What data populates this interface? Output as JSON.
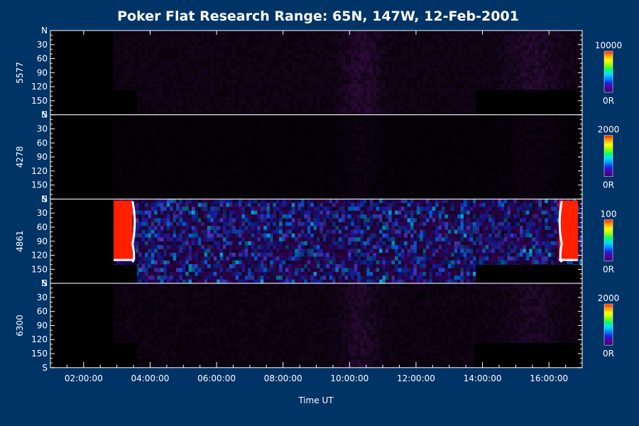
{
  "title": "Poker Flat Research Range: 65N, 147W, 12-Feb-2001",
  "colors": {
    "background": "#003366",
    "axis": "#ffffff",
    "no_data": "#000000"
  },
  "chart_data": {
    "type": "heatmap",
    "title": "Poker Flat Research Range: 65N, 147W, 12-Feb-2001",
    "xlabel": "Time UT",
    "x_range_hours": [
      1.0,
      17.0
    ],
    "x_ticks": [
      {
        "hours": 2,
        "label": "02:00:00"
      },
      {
        "hours": 4,
        "label": "04:00:00"
      },
      {
        "hours": 6,
        "label": "06:00:00"
      },
      {
        "hours": 8,
        "label": "08:00:00"
      },
      {
        "hours": 10,
        "label": "10:00:00"
      },
      {
        "hours": 12,
        "label": "12:00:00"
      },
      {
        "hours": 14,
        "label": "14:00:00"
      },
      {
        "hours": 16,
        "label": "16:00:00"
      }
    ],
    "y_range_deg": [
      0,
      180
    ],
    "y_ticks": [
      {
        "deg": 0,
        "label": "N"
      },
      {
        "deg": 30,
        "label": "30"
      },
      {
        "deg": 60,
        "label": "60"
      },
      {
        "deg": 90,
        "label": "90"
      },
      {
        "deg": 120,
        "label": "120"
      },
      {
        "deg": 150,
        "label": "150"
      },
      {
        "deg": 180,
        "label": "S"
      }
    ],
    "colorscale": [
      "#3a0060",
      "#5000a0",
      "#2020e0",
      "#0090ff",
      "#00e0ff",
      "#00ff60",
      "#a0ff00",
      "#ffff00",
      "#ffa000",
      "#ff2000"
    ],
    "panels": [
      {
        "label": "5577",
        "cbar_max": "10000",
        "cbar_min": "0R",
        "data_start_hours": 2.9,
        "notches": [
          [
            1.0,
            3.6,
            127
          ],
          [
            13.8,
            17.0,
            127
          ]
        ],
        "style": "dim",
        "intensity": 0.35
      },
      {
        "label": "4278",
        "cbar_max": "2000",
        "cbar_min": "0R",
        "data_start_hours": 2.9,
        "notches": [],
        "style": "faint",
        "intensity": 0.12
      },
      {
        "label": "4861",
        "cbar_max": "100",
        "cbar_min": "0R",
        "data_start_hours": 2.9,
        "notches": [
          [
            1.0,
            3.6,
            140
          ],
          [
            13.8,
            17.0,
            140
          ]
        ],
        "style": "speckle",
        "intensity": 0.6,
        "saturated_hours": [
          [
            2.9,
            3.6
          ],
          [
            16.3,
            17.0
          ]
        ]
      },
      {
        "label": "6300",
        "cbar_max": "2000",
        "cbar_min": "0R",
        "data_start_hours": 2.9,
        "notches": [
          [
            1.0,
            3.6,
            127
          ],
          [
            13.8,
            17.0,
            127
          ]
        ],
        "style": "dim",
        "intensity": 0.3
      }
    ]
  }
}
